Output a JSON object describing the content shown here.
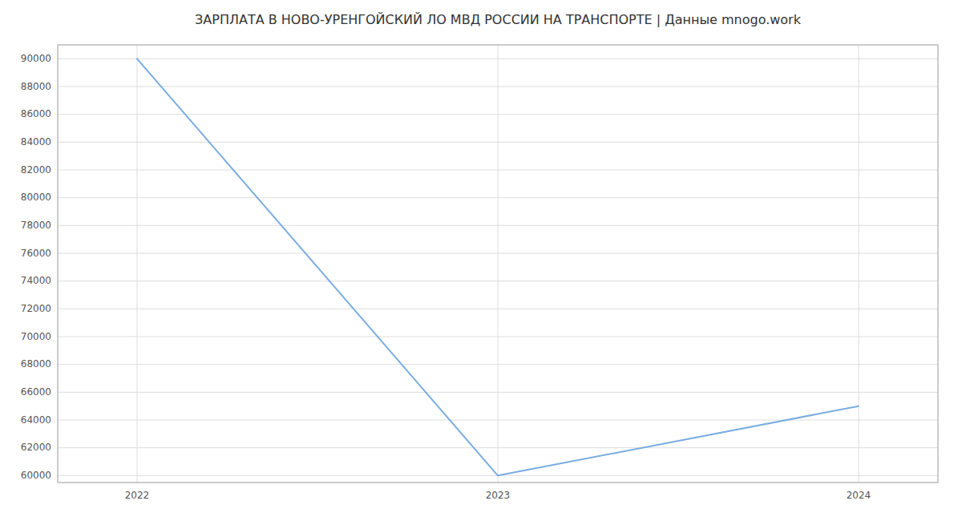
{
  "chart_data": {
    "type": "line",
    "title": "ЗАРПЛАТА В НОВО-УРЕНГОЙСКИЙ ЛО МВД РОССИИ НА ТРАНСПОРТЕ | Данные mnogo.work",
    "x": [
      2022,
      2023,
      2024
    ],
    "values": [
      90000,
      60000,
      65000
    ],
    "color": "#7aade0",
    "xlim": [
      2021.78,
      2024.22
    ],
    "ylim": [
      59500,
      91000
    ],
    "xticks": [
      2022,
      2023,
      2024
    ],
    "yticks": [
      60000,
      62000,
      64000,
      66000,
      68000,
      70000,
      72000,
      74000,
      76000,
      78000,
      80000,
      82000,
      84000,
      86000,
      88000,
      90000
    ],
    "grid": true
  }
}
